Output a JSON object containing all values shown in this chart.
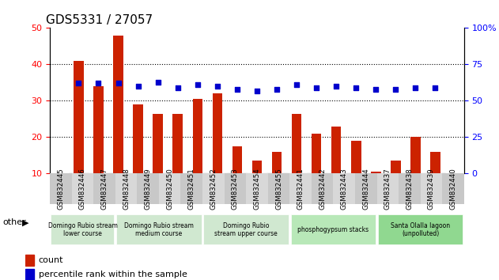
{
  "title": "GDS5331 / 27057",
  "categories": [
    "GSM832445",
    "GSM832446",
    "GSM832447",
    "GSM832448",
    "GSM832449",
    "GSM832450",
    "GSM832451",
    "GSM832452",
    "GSM832453",
    "GSM832454",
    "GSM832455",
    "GSM832441",
    "GSM832442",
    "GSM832443",
    "GSM832444",
    "GSM832437",
    "GSM832438",
    "GSM832439",
    "GSM832440"
  ],
  "bar_values": [
    41,
    34,
    48,
    29,
    26.5,
    26.5,
    30.5,
    32,
    17.5,
    13.5,
    16,
    26.5,
    21,
    23,
    19,
    10.5,
    13.5,
    20,
    16
  ],
  "dot_values": [
    62,
    62,
    62,
    60,
    63,
    59,
    61,
    60,
    58,
    57,
    58,
    61,
    59,
    60,
    59,
    58,
    58,
    59,
    59
  ],
  "bar_color": "#cc2200",
  "dot_color": "#0000cc",
  "left_ylim": [
    10,
    50
  ],
  "right_ylim": [
    0,
    100
  ],
  "left_yticks": [
    10,
    20,
    30,
    40,
    50
  ],
  "right_yticks": [
    0,
    25,
    50,
    75,
    100
  ],
  "grid_values": [
    20,
    30,
    40
  ],
  "groups": [
    {
      "label": "Domingo Rubio stream\nlower course",
      "start": 0,
      "end": 3,
      "color": "#d0e8d0"
    },
    {
      "label": "Domingo Rubio stream\nmedium course",
      "start": 3,
      "end": 7,
      "color": "#d0e8d0"
    },
    {
      "label": "Domingo Rubio\nstream upper course",
      "start": 7,
      "end": 11,
      "color": "#d0e8d0"
    },
    {
      "label": "phosphogypsum stacks",
      "start": 11,
      "end": 15,
      "color": "#b8e8b8"
    },
    {
      "label": "Santa Olalla lagoon\n(unpolluted)",
      "start": 15,
      "end": 19,
      "color": "#90d890"
    }
  ],
  "other_label": "other",
  "legend_count_label": "count",
  "legend_pct_label": "percentile rank within the sample",
  "bar_width": 0.5,
  "xlabel_fontsize": 7,
  "title_fontsize": 11
}
